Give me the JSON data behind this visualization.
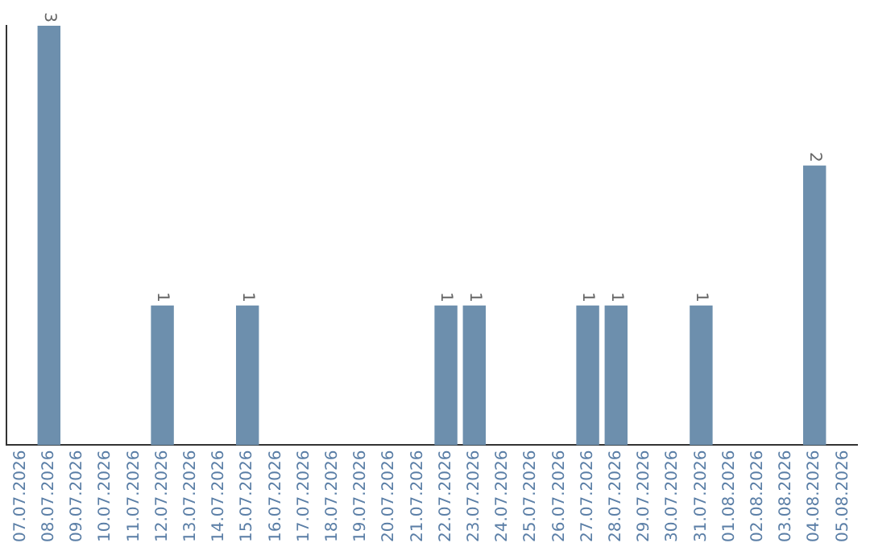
{
  "chart_data": {
    "type": "bar",
    "categories": [
      "07.07.2026",
      "08.07.2026",
      "09.07.2026",
      "10.07.2026",
      "11.07.2026",
      "12.07.2026",
      "13.07.2026",
      "14.07.2026",
      "15.07.2026",
      "16.07.2026",
      "17.07.2026",
      "18.07.2026",
      "19.07.2026",
      "20.07.2026",
      "21.07.2026",
      "22.07.2026",
      "23.07.2026",
      "24.07.2026",
      "25.07.2026",
      "26.07.2026",
      "27.07.2026",
      "28.07.2026",
      "29.07.2026",
      "30.07.2026",
      "31.07.2026",
      "01.08.2026",
      "02.08.2026",
      "03.08.2026",
      "04.08.2026",
      "05.08.2026"
    ],
    "values": [
      0,
      3,
      0,
      0,
      0,
      1,
      0,
      0,
      1,
      0,
      0,
      0,
      0,
      0,
      0,
      1,
      1,
      0,
      0,
      0,
      1,
      1,
      0,
      0,
      1,
      0,
      0,
      0,
      2,
      0
    ],
    "value_labels": [
      null,
      "3",
      null,
      null,
      null,
      "1",
      null,
      null,
      "1",
      null,
      null,
      null,
      null,
      null,
      null,
      "1",
      "1",
      null,
      null,
      null,
      "1",
      "1",
      null,
      null,
      "1",
      null,
      null,
      null,
      "2",
      null
    ],
    "color": "#6d8fad",
    "grid": false,
    "legend": false,
    "tick_labels": "x"
  }
}
